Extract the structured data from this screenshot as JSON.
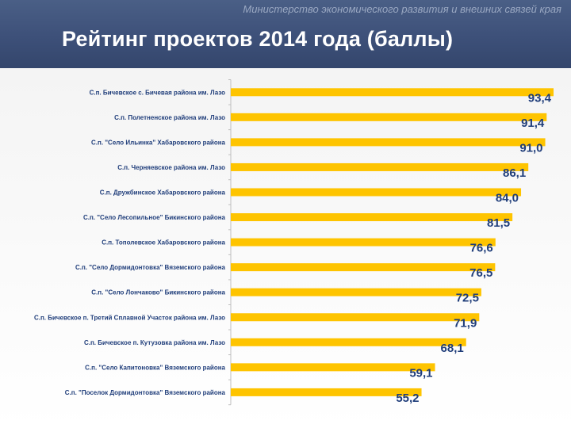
{
  "header": {
    "ministry": "Министерство экономического развития и внешних связей края",
    "title": "Рейтинг проектов 2014 года (баллы)"
  },
  "colors": {
    "bar": "#fec400",
    "label": "#1f3d7a",
    "header": "#3d5079"
  },
  "chart_data": {
    "type": "bar",
    "orientation": "horizontal",
    "title": "Рейтинг проектов 2014 года (баллы)",
    "categories": [
      "С.п. Бичевское с. Бичевая района им. Лазо",
      "С.п. Полетненское района им. Лазо",
      "С.п. \"Село Ильинка\" Хабаровского района",
      "С.п. Черняевское района им. Лазо",
      "С.п.  Дружбинское Хабаровского района",
      "С.п. \"Село Лесопильное\" Бикинского района",
      "С.п. Тополевское Хабаровского района",
      "С.п. \"Село Дормидонтовка\" Вяземского района",
      "С.п. \"Село Лончаково\" Бикинского района",
      "С.п. Бичевское п. Третий Сплавной Участок района им. Лазо",
      "С.п. Бичевское п. Кутузовка района им. Лазо",
      "С.п. \"Село Капитоновка\" Вяземского района",
      "С.п. \"Поселок Дормидонтовка\" Вяземского района"
    ],
    "values": [
      93.4,
      91.4,
      91.0,
      86.1,
      84.0,
      81.5,
      76.6,
      76.5,
      72.5,
      71.9,
      68.1,
      59.1,
      55.2
    ],
    "value_labels": [
      "93,4",
      "91,4",
      "91,0",
      "86,1",
      "84,0",
      "81,5",
      "76,6",
      "76,5",
      "72,5",
      "71,9",
      "68,1",
      "59,1",
      "55,2"
    ],
    "xlim": [
      0,
      93.4
    ],
    "grid": false,
    "legend": "none"
  }
}
